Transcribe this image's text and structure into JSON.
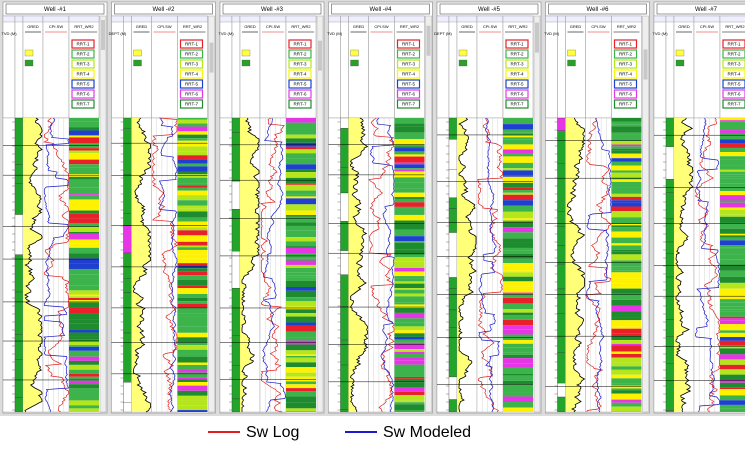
{
  "wells": [
    {
      "name": "Well -#1",
      "depth_label": "TVD (M)"
    },
    {
      "name": "Well -#2",
      "depth_label": "DEPT (M)"
    },
    {
      "name": "Well -#3",
      "depth_label": "TVD (M)"
    },
    {
      "name": "Well -#4",
      "depth_label": "TVD (M)"
    },
    {
      "name": "Well -#5",
      "depth_label": "DEPT (M)"
    },
    {
      "name": "Well -#6",
      "depth_label": "TVD (M)"
    },
    {
      "name": "Well -#7",
      "depth_label": "TVD (M)"
    }
  ],
  "track_labels": [
    "GRED",
    "CPI.SW",
    "RRT_WR2"
  ],
  "rrt_legend": [
    {
      "name": "RRT-1",
      "color": "#e8202a"
    },
    {
      "name": "RRT-2",
      "color": "#3cb44b"
    },
    {
      "name": "RRT-3",
      "color": "#b5e61d"
    },
    {
      "name": "RRT-4",
      "color": "#fff200"
    },
    {
      "name": "RRT-5",
      "color": "#1f3fd1"
    },
    {
      "name": "RRT-6",
      "color": "#e535e5"
    },
    {
      "name": "RRT-7",
      "color": "#1e8c2e"
    }
  ],
  "legend": [
    {
      "name": "Sw Log",
      "color": "#e02020"
    },
    {
      "name": "Sw Modeled",
      "color": "#1a1acc"
    }
  ]
}
